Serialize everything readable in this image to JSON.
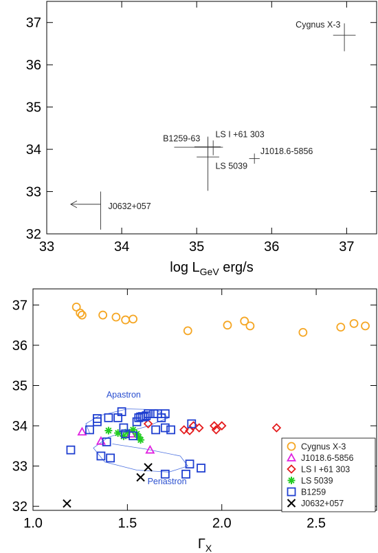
{
  "chart_data": [
    {
      "type": "scatter",
      "xlabel_main": "log L",
      "xlabel_sub": "GeV",
      "xlabel_suffix": " erg/s",
      "xlim": [
        33,
        37.4
      ],
      "ylim": [
        32,
        37.5
      ],
      "xticks": [
        33,
        34,
        35,
        36,
        37
      ],
      "yticks": [
        32,
        33,
        34,
        35,
        36,
        37
      ],
      "grid": false,
      "sources": [
        {
          "name": "Cygnus X-3",
          "x": 36.97,
          "y": 36.7,
          "xerr": [
            0.15,
            0.15
          ],
          "yerr": [
            0.38,
            0.28
          ],
          "label_x": 36.32,
          "label_y": 36.95
        },
        {
          "name": "B1259-63",
          "x": 35.15,
          "y": 34.05,
          "xerr": [
            0.45,
            0.2
          ],
          "yerr": [
            0.25,
            0.22
          ],
          "label_x": 34.55,
          "label_y": 34.25
        },
        {
          "name": "LS I +61 303",
          "x": 35.22,
          "y": 34.06,
          "xerr": [
            0.25,
            0.1
          ],
          "yerr": [
            0.2,
            0.15
          ],
          "label_x": 35.25,
          "label_y": 34.35
        },
        {
          "name": "LS 5039",
          "x": 35.15,
          "y": 33.82,
          "xerr": [
            0.15,
            0.15
          ],
          "yerr": [
            0.8,
            0.48
          ],
          "label_x": 35.25,
          "label_y": 33.6
        },
        {
          "name": "J1018.6-5856",
          "x": 35.77,
          "y": 33.78,
          "xerr": [
            0.07,
            0.07
          ],
          "yerr": [
            0.12,
            0.12
          ],
          "label_x": 35.85,
          "label_y": 33.95
        },
        {
          "name": "J0632+057",
          "x": 33.72,
          "y": 32.7,
          "xerr": [
            0.3,
            0.0
          ],
          "yerr": [
            0.6,
            0.3
          ],
          "upper_limit": true,
          "label_x": 33.82,
          "label_y": 32.65
        }
      ]
    },
    {
      "type": "scatter",
      "xlabel_main": "Γ",
      "xlabel_sub": "X",
      "xlim": [
        1.0,
        2.82
      ],
      "ylim": [
        31.9,
        37.4
      ],
      "xticks": [
        1.0,
        1.5,
        2.0,
        2.5
      ],
      "xticklabels": [
        "1.0",
        "1.5",
        "2.0",
        "2.5"
      ],
      "yticks": [
        32,
        33,
        34,
        35,
        36,
        37
      ],
      "grid": false,
      "legend_position": "bottom-right",
      "annotations": [
        {
          "text": "Apastron",
          "x": 1.48,
          "y": 34.7
        },
        {
          "text": "Periastron",
          "x": 1.71,
          "y": 32.55
        }
      ],
      "series": [
        {
          "name": "Cygnus X-3",
          "marker": "circle",
          "color": "#f5a623",
          "points": [
            [
              1.23,
              36.95
            ],
            [
              1.25,
              36.8
            ],
            [
              1.26,
              36.75
            ],
            [
              1.37,
              36.75
            ],
            [
              1.44,
              36.7
            ],
            [
              1.49,
              36.63
            ],
            [
              1.53,
              36.65
            ],
            [
              1.82,
              36.36
            ],
            [
              2.03,
              36.5
            ],
            [
              2.12,
              36.6
            ],
            [
              2.15,
              36.48
            ],
            [
              2.43,
              36.32
            ],
            [
              2.63,
              36.45
            ],
            [
              2.7,
              36.54
            ],
            [
              2.76,
              36.48
            ]
          ]
        },
        {
          "name": "J1018.6-5856",
          "marker": "triangle",
          "color": "#e020e0",
          "points": [
            [
              1.26,
              33.85
            ],
            [
              1.36,
              33.62
            ],
            [
              1.52,
              33.8
            ],
            [
              1.62,
              33.4
            ]
          ]
        },
        {
          "name": "LS I +61 303",
          "marker": "diamond",
          "color": "#e41a1c",
          "points": [
            [
              1.61,
              34.05
            ],
            [
              1.8,
              33.9
            ],
            [
              1.83,
              33.88
            ],
            [
              1.85,
              34.0
            ],
            [
              1.88,
              33.95
            ],
            [
              1.96,
              34.0
            ],
            [
              1.97,
              33.9
            ],
            [
              2.0,
              34.0
            ],
            [
              2.29,
              33.95
            ]
          ]
        },
        {
          "name": "LS 5039",
          "marker": "asterisk",
          "color": "#22cc22",
          "points": [
            [
              1.4,
              33.88
            ],
            [
              1.45,
              33.82
            ],
            [
              1.5,
              33.85
            ],
            [
              1.53,
              33.9
            ],
            [
              1.55,
              33.8
            ],
            [
              1.56,
              33.72
            ],
            [
              1.57,
              33.65
            ],
            [
              1.48,
              33.74
            ]
          ]
        },
        {
          "name": "B1259",
          "marker": "square",
          "color": "#1f3fd0",
          "points": [
            [
              1.2,
              33.4
            ],
            [
              1.3,
              33.9
            ],
            [
              1.34,
              34.1
            ],
            [
              1.34,
              34.18
            ],
            [
              1.36,
              33.25
            ],
            [
              1.39,
              33.6
            ],
            [
              1.4,
              34.2
            ],
            [
              1.41,
              33.2
            ],
            [
              1.45,
              34.2
            ],
            [
              1.47,
              34.35
            ],
            [
              1.48,
              33.95
            ],
            [
              1.49,
              33.8
            ],
            [
              1.53,
              33.75
            ],
            [
              1.55,
              34.1
            ],
            [
              1.56,
              34.2
            ],
            [
              1.57,
              34.22
            ],
            [
              1.58,
              34.23
            ],
            [
              1.59,
              34.22
            ],
            [
              1.6,
              34.25
            ],
            [
              1.61,
              34.3
            ],
            [
              1.64,
              34.3
            ],
            [
              1.65,
              33.9
            ],
            [
              1.66,
              34.3
            ],
            [
              1.68,
              34.2
            ],
            [
              1.7,
              34.3
            ],
            [
              1.7,
              33.95
            ],
            [
              1.73,
              33.9
            ],
            [
              1.7,
              32.8
            ],
            [
              1.81,
              32.8
            ],
            [
              1.83,
              33.05
            ],
            [
              1.84,
              34.05
            ],
            [
              1.89,
              32.95
            ]
          ]
        },
        {
          "name": "J0632+057",
          "marker": "x",
          "color": "#000000",
          "points": [
            [
              1.18,
              32.07
            ],
            [
              1.57,
              32.72
            ],
            [
              1.61,
              32.97
            ]
          ]
        }
      ]
    }
  ]
}
